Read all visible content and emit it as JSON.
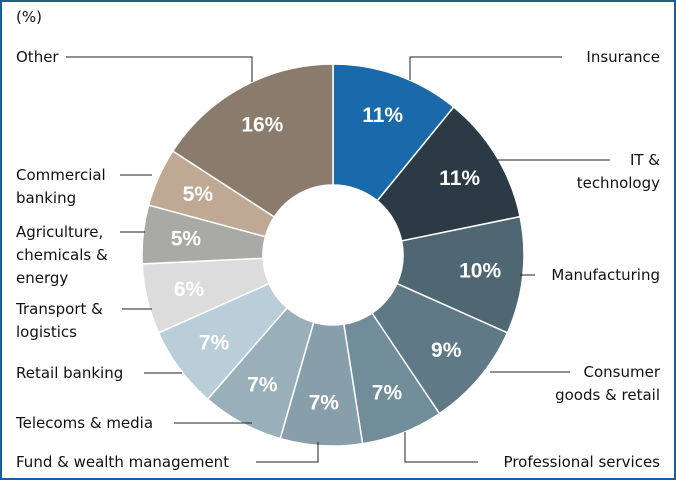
{
  "chart_data": {
    "type": "donut",
    "subtitle": "(%)",
    "categories": [
      "Insurance",
      "IT &\ntechnology",
      "Manufacturing",
      "Consumer\ngoods & retail",
      "Professional services",
      "Fund & wealth management",
      "Telecoms & media",
      "Retail banking",
      "Transport &\nlogistics",
      "Agriculture,\nchemicals &\nenergy",
      "Commercial\nbanking",
      "Other"
    ],
    "values": [
      11,
      11,
      10,
      9,
      7,
      7,
      7,
      7,
      6,
      5,
      5,
      16
    ],
    "value_labels": [
      "11%",
      "11%",
      "10%",
      "9%",
      "7%",
      "7%",
      "7%",
      "7%",
      "6%",
      "5%",
      "5%",
      "16%"
    ],
    "colors": [
      "#1a6aab",
      "#2b3a44",
      "#4e6773",
      "#5f7a86",
      "#718d99",
      "#879fab",
      "#99b0bb",
      "#b9ced8",
      "#dcdcdc",
      "#a9a9a6",
      "#bfa894",
      "#8b7b6d"
    ]
  }
}
